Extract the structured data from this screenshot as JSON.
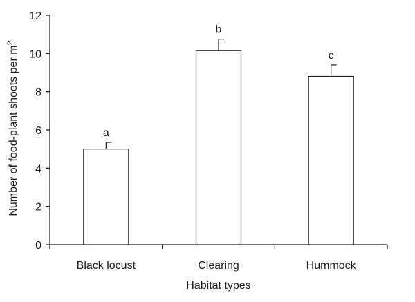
{
  "chart_data": {
    "type": "bar",
    "categories": [
      "Black locust",
      "Clearing",
      "Hummock"
    ],
    "values": [
      5.0,
      10.15,
      8.8
    ],
    "errors": [
      0.35,
      0.6,
      0.6
    ],
    "significance_letters": [
      "a",
      "b",
      "c"
    ],
    "xlabel": "Habitat types",
    "ylabel": "Number of food-plant shoots per m",
    "ylabel_superscript": "2",
    "ylim": [
      0,
      12
    ],
    "yticks": [
      0,
      2,
      4,
      6,
      8,
      10,
      12
    ],
    "grid": false,
    "legend": "none",
    "bar_fill": "#ffffff",
    "bar_stroke": "#1a1a1a"
  }
}
